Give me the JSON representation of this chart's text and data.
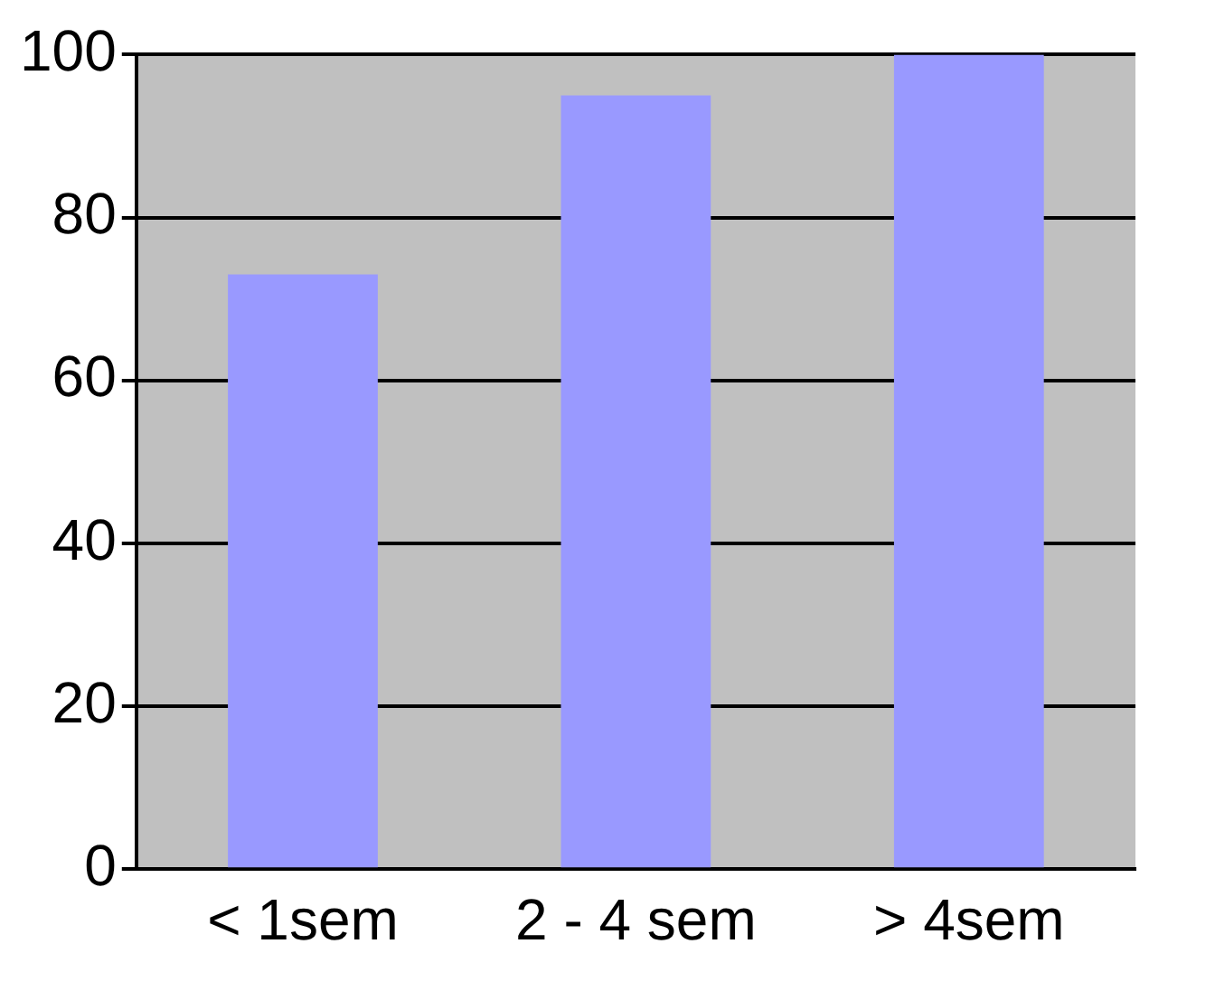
{
  "chart_data": {
    "type": "bar",
    "categories": [
      "< 1sem",
      "2 - 4 sem",
      "> 4sem"
    ],
    "values": [
      73,
      95,
      100
    ],
    "color": "#9999ff",
    "ylim": [
      0,
      100
    ],
    "yticks": [
      0,
      20,
      40,
      60,
      80,
      100
    ],
    "grid": "y",
    "legend": false
  }
}
